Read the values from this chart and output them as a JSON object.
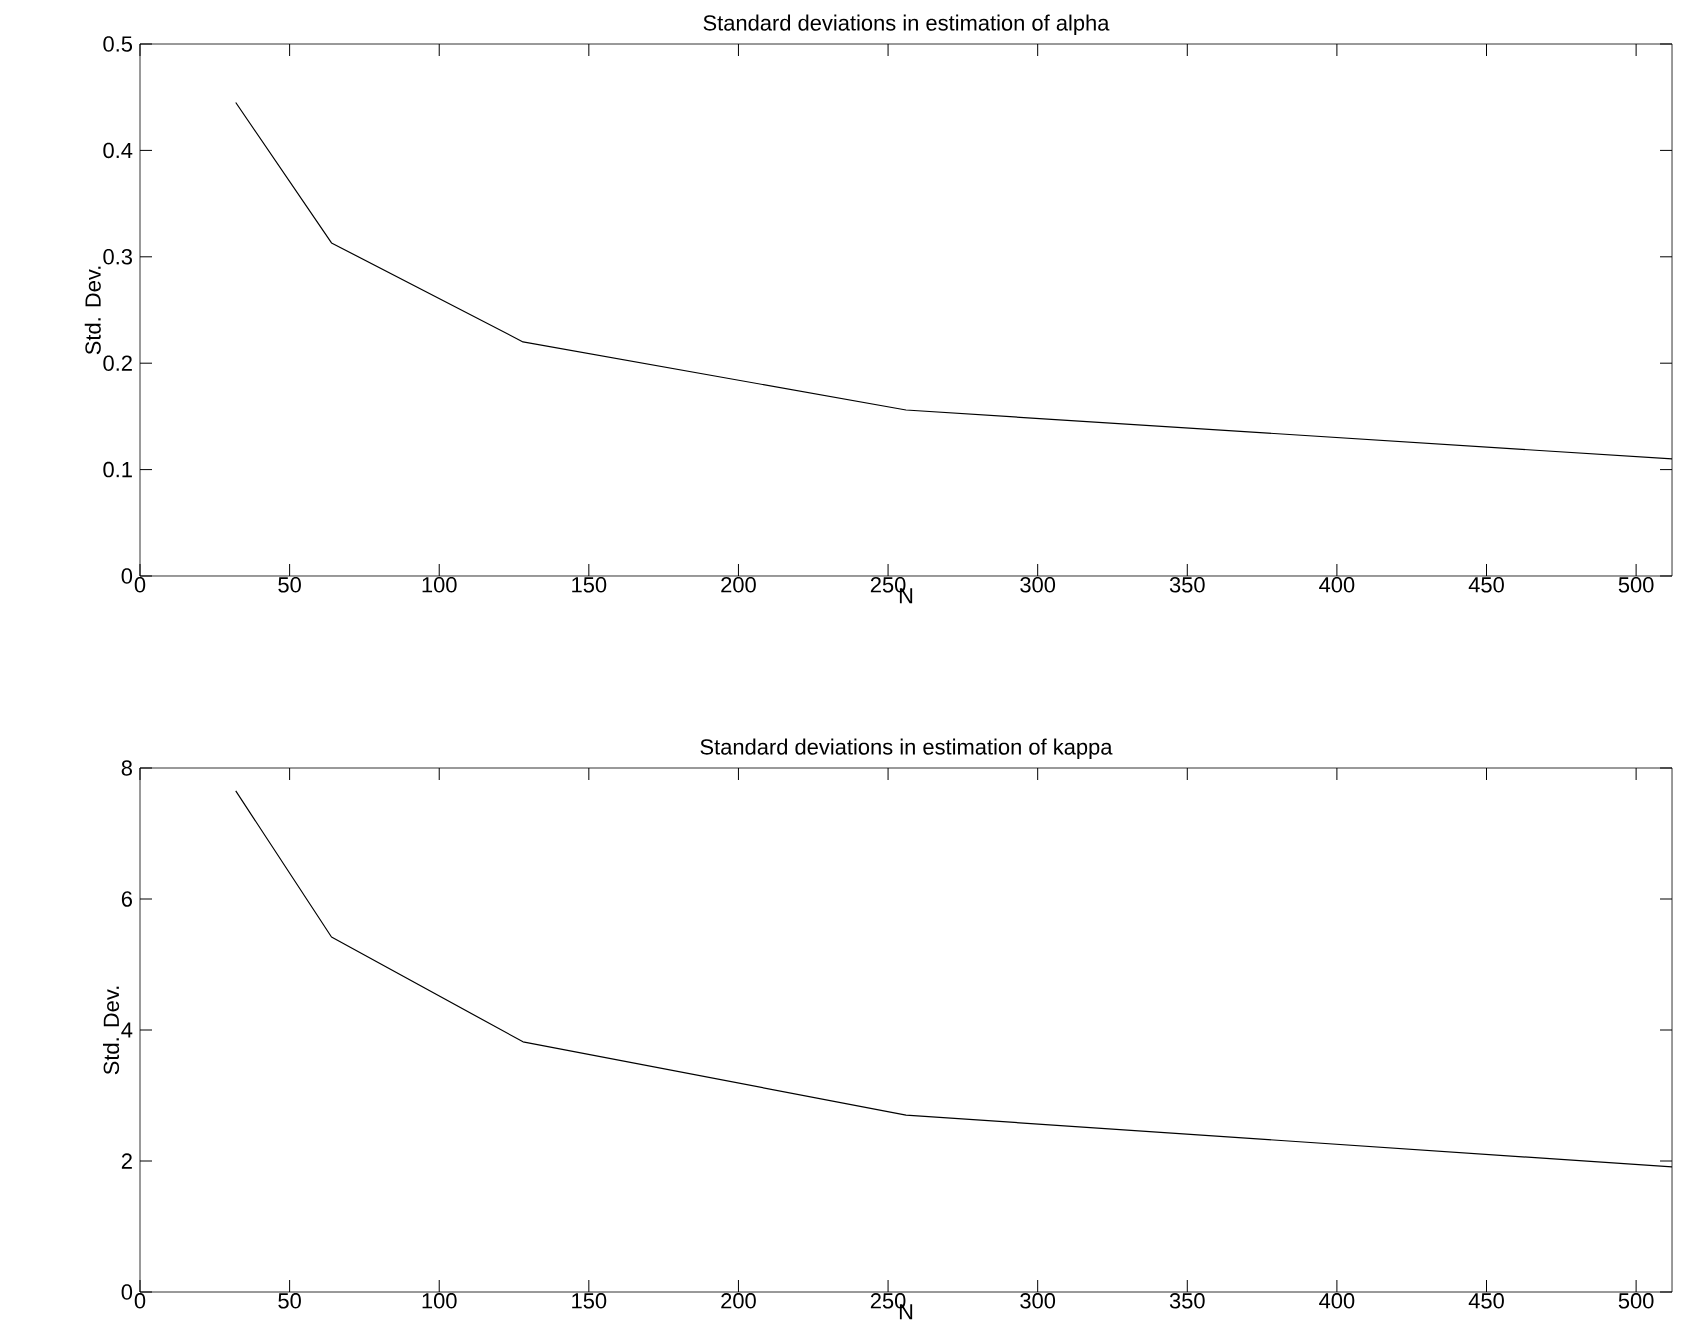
{
  "chart_data": [
    {
      "type": "line",
      "title": "Standard deviations in estimation of alpha",
      "xlabel": "N",
      "ylabel": "Std. Dev.",
      "x": [
        32,
        64,
        128,
        256,
        512
      ],
      "values": [
        0.445,
        0.313,
        0.22,
        0.156,
        0.11
      ],
      "color": "#000000",
      "xlim": [
        0,
        512
      ],
      "xticks": [
        0,
        50,
        100,
        150,
        200,
        250,
        300,
        350,
        400,
        450,
        500
      ],
      "ylim": [
        0,
        0.5
      ],
      "yticks": [
        0,
        0.1,
        0.2,
        0.3,
        0.4,
        0.5
      ]
    },
    {
      "type": "line",
      "title": "Standard deviations in estimation of kappa",
      "xlabel": "N",
      "ylabel": "Std. Dev.",
      "x": [
        32,
        64,
        128,
        256,
        512
      ],
      "values": [
        7.65,
        5.42,
        3.82,
        2.7,
        1.91
      ],
      "color": "#000000",
      "xlim": [
        0,
        512
      ],
      "xticks": [
        0,
        50,
        100,
        150,
        200,
        250,
        300,
        350,
        400,
        450,
        500
      ],
      "ylim": [
        0,
        8
      ],
      "yticks": [
        0,
        2,
        4,
        6,
        8
      ]
    }
  ]
}
